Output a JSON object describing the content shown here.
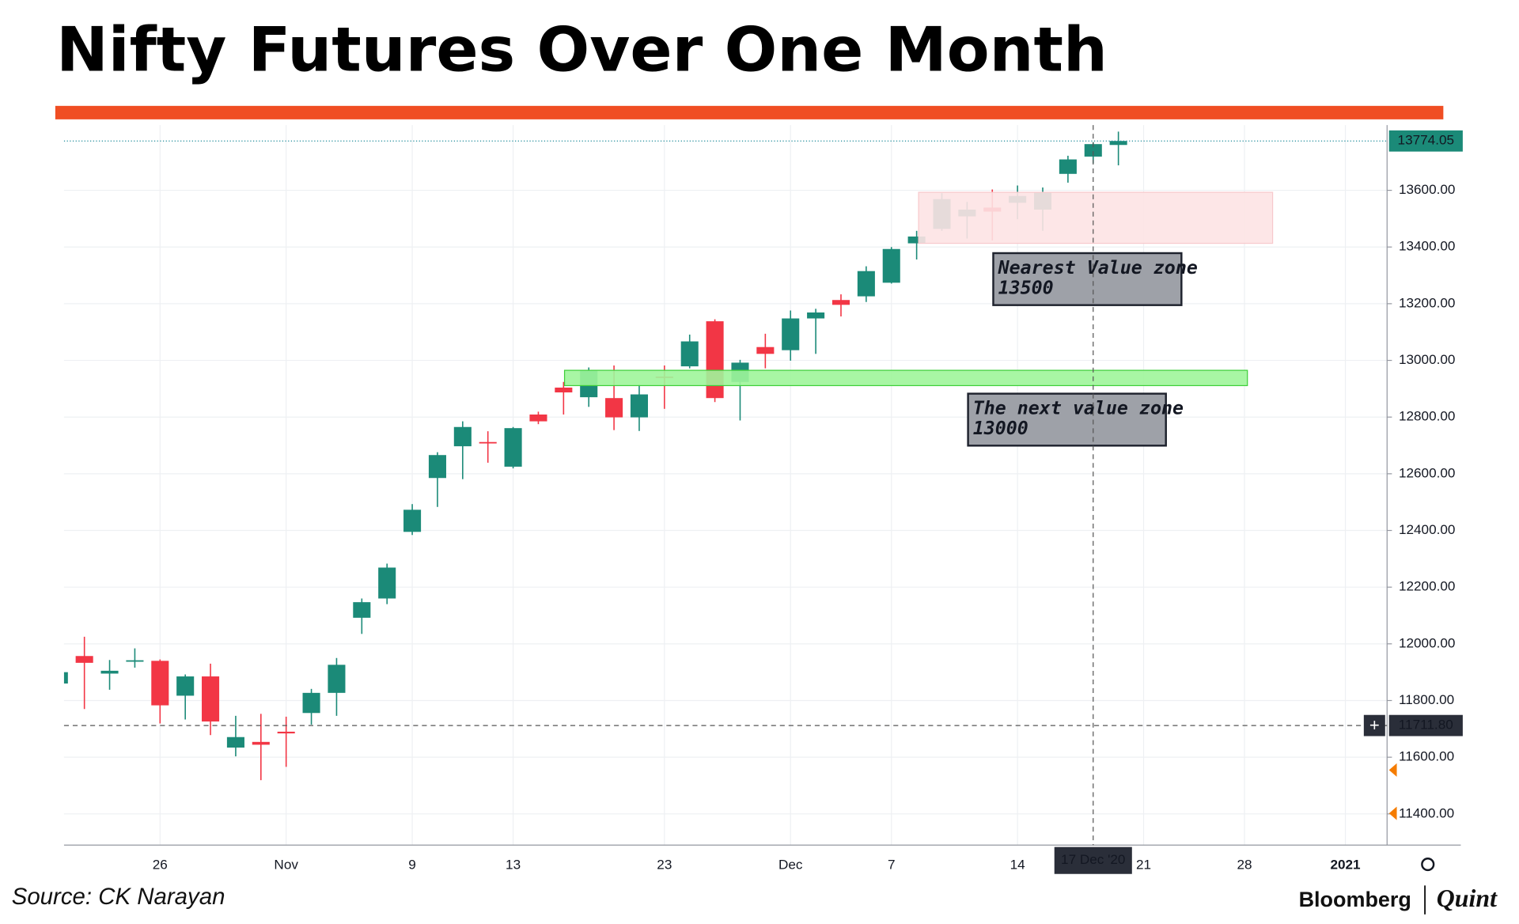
{
  "chart_data": {
    "type": "candlestick",
    "title": "Nifty Futures Over One Month",
    "source": "Source: CK Narayan",
    "brand": [
      "Bloomberg",
      "Quint"
    ],
    "up_color": "#1b8a78",
    "down_color": "#f23645",
    "categories": [
      null,
      null,
      null,
      null,
      "26",
      null,
      null,
      null,
      null,
      "Nov",
      null,
      null,
      null,
      null,
      "9",
      null,
      null,
      null,
      "13",
      null,
      null,
      null,
      null,
      null,
      "23",
      null,
      null,
      null,
      null,
      "Dec",
      null,
      null,
      null,
      "7",
      null,
      null,
      null,
      null,
      "14",
      null,
      null,
      null,
      null,
      "21",
      null,
      null,
      null,
      "28",
      null,
      null,
      null,
      "2021"
    ],
    "open": [
      11860,
      11957,
      11895,
      11938,
      11940,
      11817,
      11885,
      11634,
      11654,
      11690,
      11756,
      11827,
      12092,
      12160,
      12395,
      12585,
      12697,
      12712,
      12625,
      12809,
      12904,
      12870,
      12867,
      12799,
      12943,
      12979,
      13138,
      12924,
      13047,
      13036,
      13148,
      13213,
      13226,
      13274,
      13413,
      13464,
      13508,
      13539,
      13556,
      13532,
      13658,
      13719,
      13760,
      null,
      null,
      null,
      null,
      null,
      null,
      null,
      null,
      null
    ],
    "high": [
      11905,
      12025,
      11943,
      11984,
      11945,
      11892,
      11930,
      11746,
      11753,
      11743,
      11841,
      11950,
      12160,
      12283,
      12493,
      12676,
      12785,
      12750,
      12765,
      12819,
      12924,
      12975,
      12982,
      12914,
      12982,
      13091,
      13145,
      13002,
      13094,
      13176,
      13182,
      13233,
      13332,
      13400,
      13457,
      13590,
      13559,
      13603,
      13617,
      13610,
      13722,
      13770,
      13807,
      null,
      null,
      null,
      null,
      null,
      null,
      null,
      null,
      null
    ],
    "low": [
      11855,
      11770,
      11838,
      11916,
      11719,
      11733,
      11678,
      11603,
      11519,
      11566,
      11715,
      11746,
      12035,
      12140,
      12384,
      12483,
      12581,
      12639,
      12619,
      12775,
      12809,
      12836,
      12754,
      12751,
      12829,
      12972,
      12853,
      12788,
      12972,
      12999,
      13023,
      13155,
      13206,
      13271,
      13356,
      13457,
      13430,
      13423,
      13498,
      13457,
      13627,
      13695,
      13688,
      null,
      null,
      null,
      null,
      null,
      null,
      null,
      null,
      null
    ],
    "close": [
      11900,
      11933,
      11905,
      11942,
      11783,
      11885,
      11726,
      11671,
      11644,
      11684,
      11827,
      11926,
      12147,
      12269,
      12473,
      12666,
      12765,
      12708,
      12761,
      12785,
      12887,
      12965,
      12799,
      12880,
      12939,
      13067,
      12867,
      12992,
      13023,
      13148,
      13169,
      13196,
      13315,
      13393,
      13437,
      13569,
      13532,
      13525,
      13580,
      13593,
      13709,
      13763,
      13774.05,
      null,
      null,
      null,
      null,
      null,
      null,
      null,
      null,
      null
    ],
    "ylim": [
      11290,
      13830
    ],
    "yticks": [
      {
        "value": 11400,
        "label": "11400.00"
      },
      {
        "value": 11600,
        "label": "11600.00"
      },
      {
        "value": 11800,
        "label": "11800.00"
      },
      {
        "value": 12000,
        "label": "12000.00"
      },
      {
        "value": 12200,
        "label": "12200.00"
      },
      {
        "value": 12400,
        "label": "12400.00"
      },
      {
        "value": 12600,
        "label": "12600.00"
      },
      {
        "value": 12800,
        "label": "12800.00"
      },
      {
        "value": 13000,
        "label": "13000.00"
      },
      {
        "value": 13200,
        "label": "13200.00"
      },
      {
        "value": 13400,
        "label": "13400.00"
      },
      {
        "value": 13600,
        "label": "13600.00"
      }
    ],
    "grid": true,
    "zones": [
      {
        "lines": [
          "Nearest Value zone",
          "13500"
        ],
        "range": [
          13413,
          13593
        ],
        "color": "#fde3e4"
      },
      {
        "lines": [
          "The next value zone",
          "13000"
        ],
        "range": [
          12911,
          12965
        ],
        "color": "#9ef59a"
      }
    ],
    "price_labels": [
      {
        "value": 13774.05,
        "label": "13774.05"
      },
      {
        "value": 11711.8,
        "label": "11711.80"
      }
    ],
    "crosshair_label": "17 Dec '20"
  }
}
